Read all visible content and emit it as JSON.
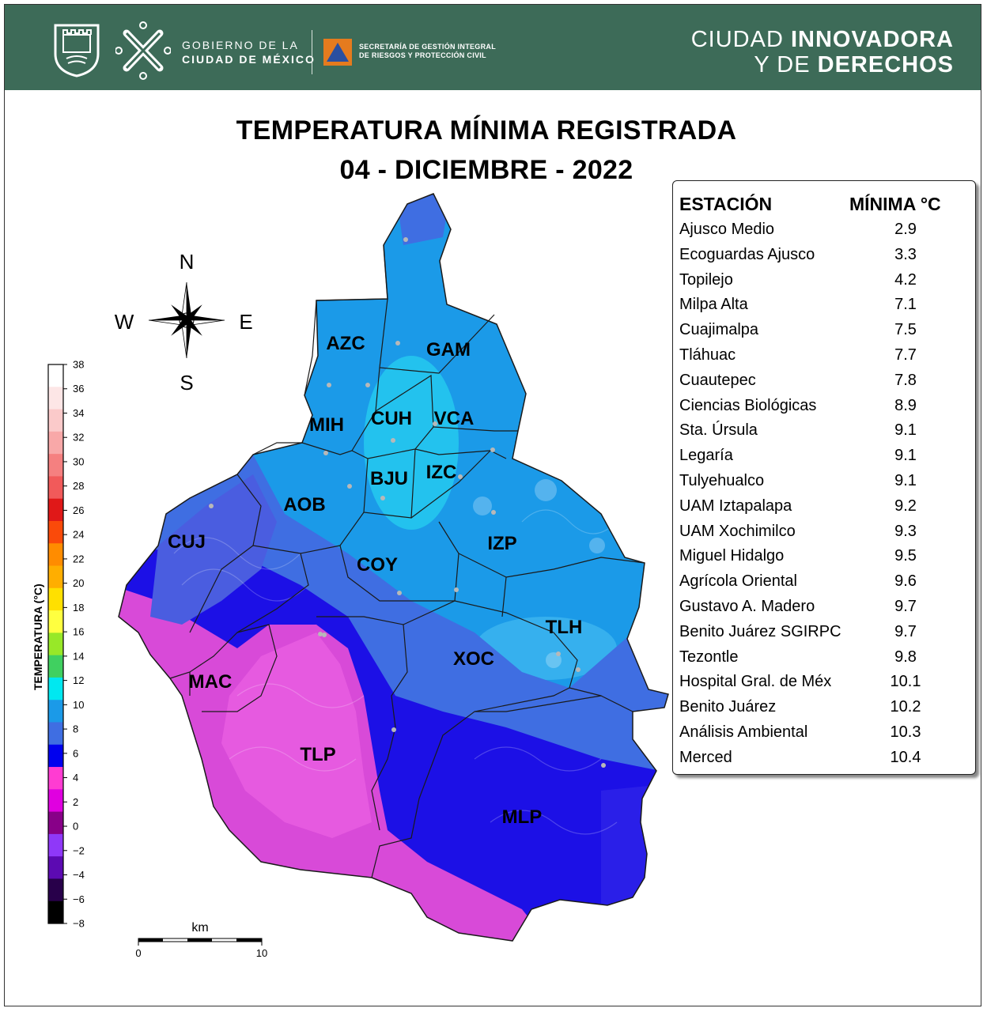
{
  "header": {
    "gov_line1": "GOBIERNO DE LA",
    "gov_line2": "CIUDAD DE MÉXICO",
    "agency_line1": "SECRETARÍA DE GESTIÓN INTEGRAL",
    "agency_line2": "DE RIESGOS Y PROTECCIÓN CIVIL",
    "slogan_line1_light": "CIUDAD ",
    "slogan_line1_bold": "INNOVADORA",
    "slogan_line2_light": "Y DE ",
    "slogan_line2_bold": "DERECHOS",
    "bg_color": "#3d6b58"
  },
  "title": {
    "line1": "TEMPERATURA MÍNIMA REGISTRADA",
    "line2": "04 - DICIEMBRE - 2022"
  },
  "compass": {
    "n": "N",
    "s": "S",
    "e": "E",
    "w": "W"
  },
  "scale_bar": {
    "unit": "km",
    "min": "0",
    "max": "10"
  },
  "legend": {
    "title": "TEMPERATURA (°C)",
    "ticks": [
      "38",
      "36",
      "34",
      "32",
      "30",
      "28",
      "26",
      "24",
      "22",
      "20",
      "18",
      "16",
      "14",
      "12",
      "10",
      "8",
      "6",
      "4",
      "2",
      "0",
      "−2",
      "−4",
      "−6",
      "−8"
    ],
    "colors": [
      "#ffffff",
      "#fde6e6",
      "#fbcaca",
      "#f8a8a8",
      "#f58080",
      "#f15a5a",
      "#e01818",
      "#fa4a0a",
      "#ff8c00",
      "#ffae00",
      "#ffe000",
      "#ffff40",
      "#98e828",
      "#40d060",
      "#00e8f0",
      "#1b9ae8",
      "#3f6ee2",
      "#0000ee",
      "#ff3cd2",
      "#e000e0",
      "#880088",
      "#8f38f8",
      "#5c0ab2",
      "#28004a",
      "#000000"
    ]
  },
  "districts": [
    "AZC",
    "GAM",
    "MIH",
    "CUH",
    "VCA",
    "BJU",
    "IZC",
    "AOB",
    "CUJ",
    "COY",
    "IZP",
    "TLH",
    "XOC",
    "MAC",
    "TLP",
    "MLP"
  ],
  "stations_table": {
    "header_station": "ESTACIÓN",
    "header_min": "MÍNIMA °C",
    "rows": [
      {
        "name": "Ajusco Medio",
        "value": "2.9"
      },
      {
        "name": "Ecoguardas Ajusco",
        "value": "3.3"
      },
      {
        "name": "Topilejo",
        "value": "4.2"
      },
      {
        "name": "Milpa Alta",
        "value": "7.1"
      },
      {
        "name": "Cuajimalpa",
        "value": "7.5"
      },
      {
        "name": "Tláhuac",
        "value": "7.7"
      },
      {
        "name": "Cuautepec",
        "value": "7.8"
      },
      {
        "name": "Ciencias Biológicas",
        "value": "8.9"
      },
      {
        "name": "Sta. Úrsula",
        "value": "9.1"
      },
      {
        "name": "Legaría",
        "value": "9.1"
      },
      {
        "name": "Tulyehualco",
        "value": "9.1"
      },
      {
        "name": "UAM Iztapalapa",
        "value": "9.2"
      },
      {
        "name": "UAM Xochimilco",
        "value": "9.3"
      },
      {
        "name": "Miguel Hidalgo",
        "value": "9.5"
      },
      {
        "name": "Agrícola Oriental",
        "value": "9.6"
      },
      {
        "name": "Gustavo A. Madero",
        "value": "9.7"
      },
      {
        "name": "Benito Juárez SGIRPC",
        "value": "9.7"
      },
      {
        "name": "Tezontle",
        "value": "9.8"
      },
      {
        "name": "Hospital Gral. de Méx",
        "value": "10.1"
      },
      {
        "name": "Benito Juárez",
        "value": "10.2"
      },
      {
        "name": "Análisis Ambiental",
        "value": "10.3"
      },
      {
        "name": "Merced",
        "value": "10.4"
      }
    ]
  }
}
